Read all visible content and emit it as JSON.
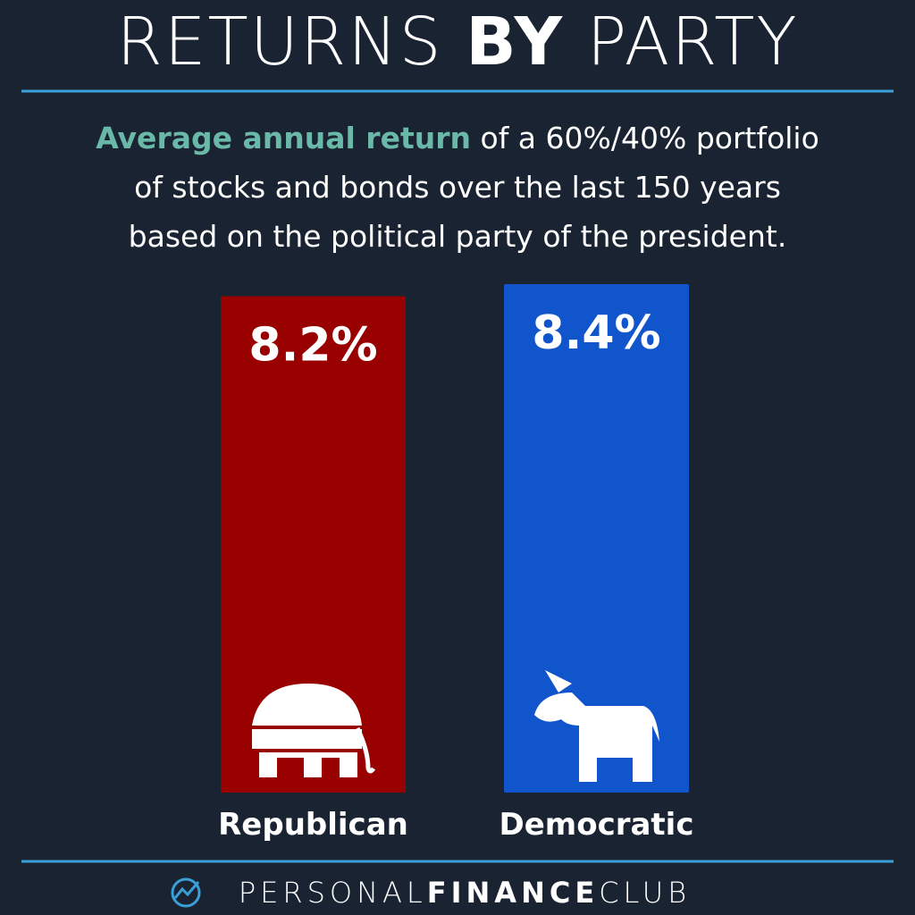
{
  "chart_data": {
    "type": "bar",
    "title": [
      "RETURNS",
      "BY",
      "PARTY"
    ],
    "subtitle": {
      "highlight": "Average annual return",
      "lines": [
        "of a 60%/40% portfolio",
        "of stocks and bonds over the last 150 years",
        "based on the political party of the president."
      ]
    },
    "categories": [
      "Republican",
      "Democratic"
    ],
    "values": [
      8.2,
      8.4
    ],
    "value_labels": [
      "8.2%",
      "8.4%"
    ],
    "colors": [
      "#990000",
      "#1155cc"
    ],
    "footer": [
      "PERSONAL",
      "FINANCE",
      "CLUB"
    ]
  }
}
